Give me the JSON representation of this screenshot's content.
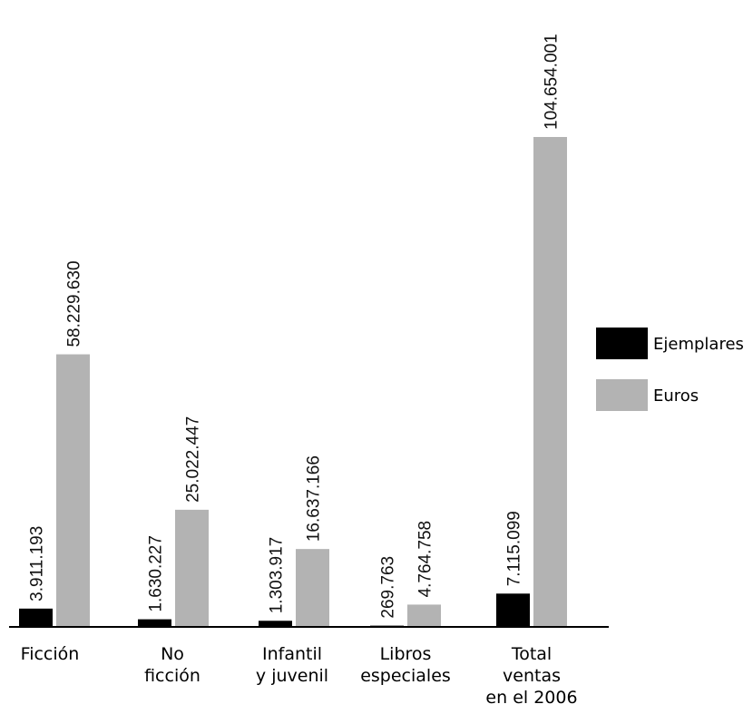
{
  "chart_data": {
    "type": "bar",
    "title": "",
    "xlabel": "",
    "ylabel": "",
    "grid": false,
    "legend_position": "right",
    "categories": [
      [
        "Ficción"
      ],
      [
        "No",
        "ficción"
      ],
      [
        "Infantil",
        "y juvenil"
      ],
      [
        "Libros",
        "especiales"
      ],
      [
        "Total",
        "ventas",
        "en el 2006"
      ]
    ],
    "series": [
      {
        "name": "Ejemplares",
        "color": "#000000",
        "values": [
          3911193,
          1630227,
          1303917,
          269763,
          7115099
        ],
        "labels": [
          "3.911.193",
          "1.630.227",
          "1.303.917",
          "269.763",
          "7.115.099"
        ]
      },
      {
        "name": "Euros",
        "color": "#b3b3b3",
        "values": [
          58229630,
          25022447,
          16637166,
          4764758,
          104654001
        ],
        "labels": [
          "58.229.630",
          "25.022.447",
          "16.637.166",
          "4.764.758",
          "104.654.001"
        ]
      }
    ]
  }
}
